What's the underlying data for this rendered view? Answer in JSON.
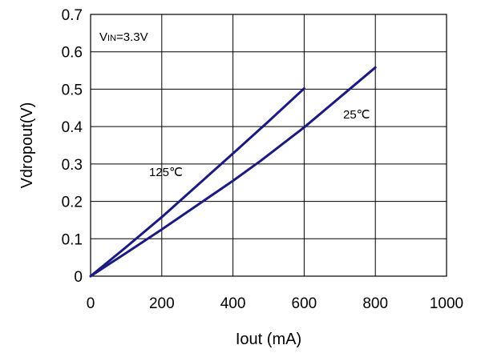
{
  "chart_data": {
    "type": "line",
    "title": "",
    "xlabel": "Iout (mA)",
    "ylabel": "Vdropout(V)",
    "xlim": [
      0,
      1000
    ],
    "ylim": [
      0,
      0.7
    ],
    "xticks": [
      0,
      200,
      400,
      600,
      800,
      1000
    ],
    "yticks": [
      0,
      0.1,
      0.2,
      0.3,
      0.4,
      0.5,
      0.6,
      0.7
    ],
    "xtick_labels": [
      "0",
      "200",
      "400",
      "600",
      "800",
      "1000"
    ],
    "ytick_labels": [
      "0",
      "0.1",
      "0.2",
      "0.3",
      "0.4",
      "0.5",
      "0.6",
      "0.7"
    ],
    "grid": true,
    "annotation_vin": {
      "prefix": "V",
      "subscript": "IN",
      "suffix": "=3.3V"
    },
    "series": [
      {
        "name": "125℃",
        "x": [
          0,
          100,
          200,
          300,
          400,
          500,
          600
        ],
        "y": [
          0,
          0.078,
          0.158,
          0.243,
          0.328,
          0.414,
          0.502
        ]
      },
      {
        "name": "25℃",
        "x": [
          0,
          100,
          200,
          300,
          400,
          480,
          600,
          700,
          800
        ],
        "y": [
          0,
          0.062,
          0.125,
          0.19,
          0.255,
          0.31,
          0.398,
          0.478,
          0.558
        ]
      }
    ]
  }
}
